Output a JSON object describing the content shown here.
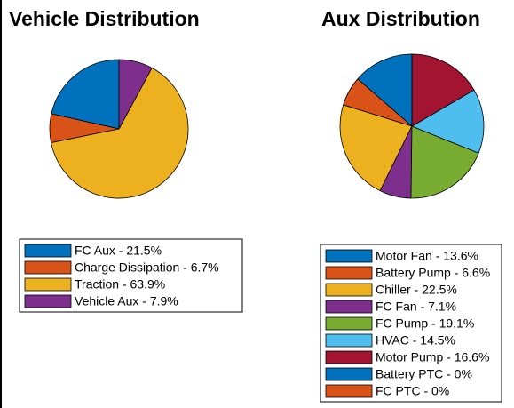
{
  "chart_data": [
    {
      "type": "pie",
      "title": "Vehicle Distribution",
      "categories": [
        "FC Aux - 21.5%",
        "Charge Dissipation - 6.7%",
        "Traction - 63.9%",
        "Vehicle Aux - 7.9%"
      ],
      "values": [
        21.5,
        6.7,
        63.9,
        7.9
      ],
      "colors": [
        "#0072bd",
        "#d95319",
        "#edb120",
        "#7e2f8e"
      ]
    },
    {
      "type": "pie",
      "title": "Aux Distribution",
      "categories": [
        "Motor Fan - 13.6%",
        "Battery Pump - 6.6%",
        "Chiller - 22.5%",
        "FC Fan - 7.1%",
        "FC Pump - 19.1%",
        "HVAC - 14.5%",
        "Motor Pump - 16.6%",
        "Battery PTC - 0%",
        "FC PTC - 0%"
      ],
      "values": [
        13.6,
        6.6,
        22.5,
        7.1,
        19.1,
        14.5,
        16.6,
        0,
        0
      ],
      "colors": [
        "#0072bd",
        "#d95319",
        "#edb120",
        "#7e2f8e",
        "#77ac30",
        "#4dbeee",
        "#a2142f",
        "#0072bd",
        "#d95319"
      ]
    }
  ]
}
